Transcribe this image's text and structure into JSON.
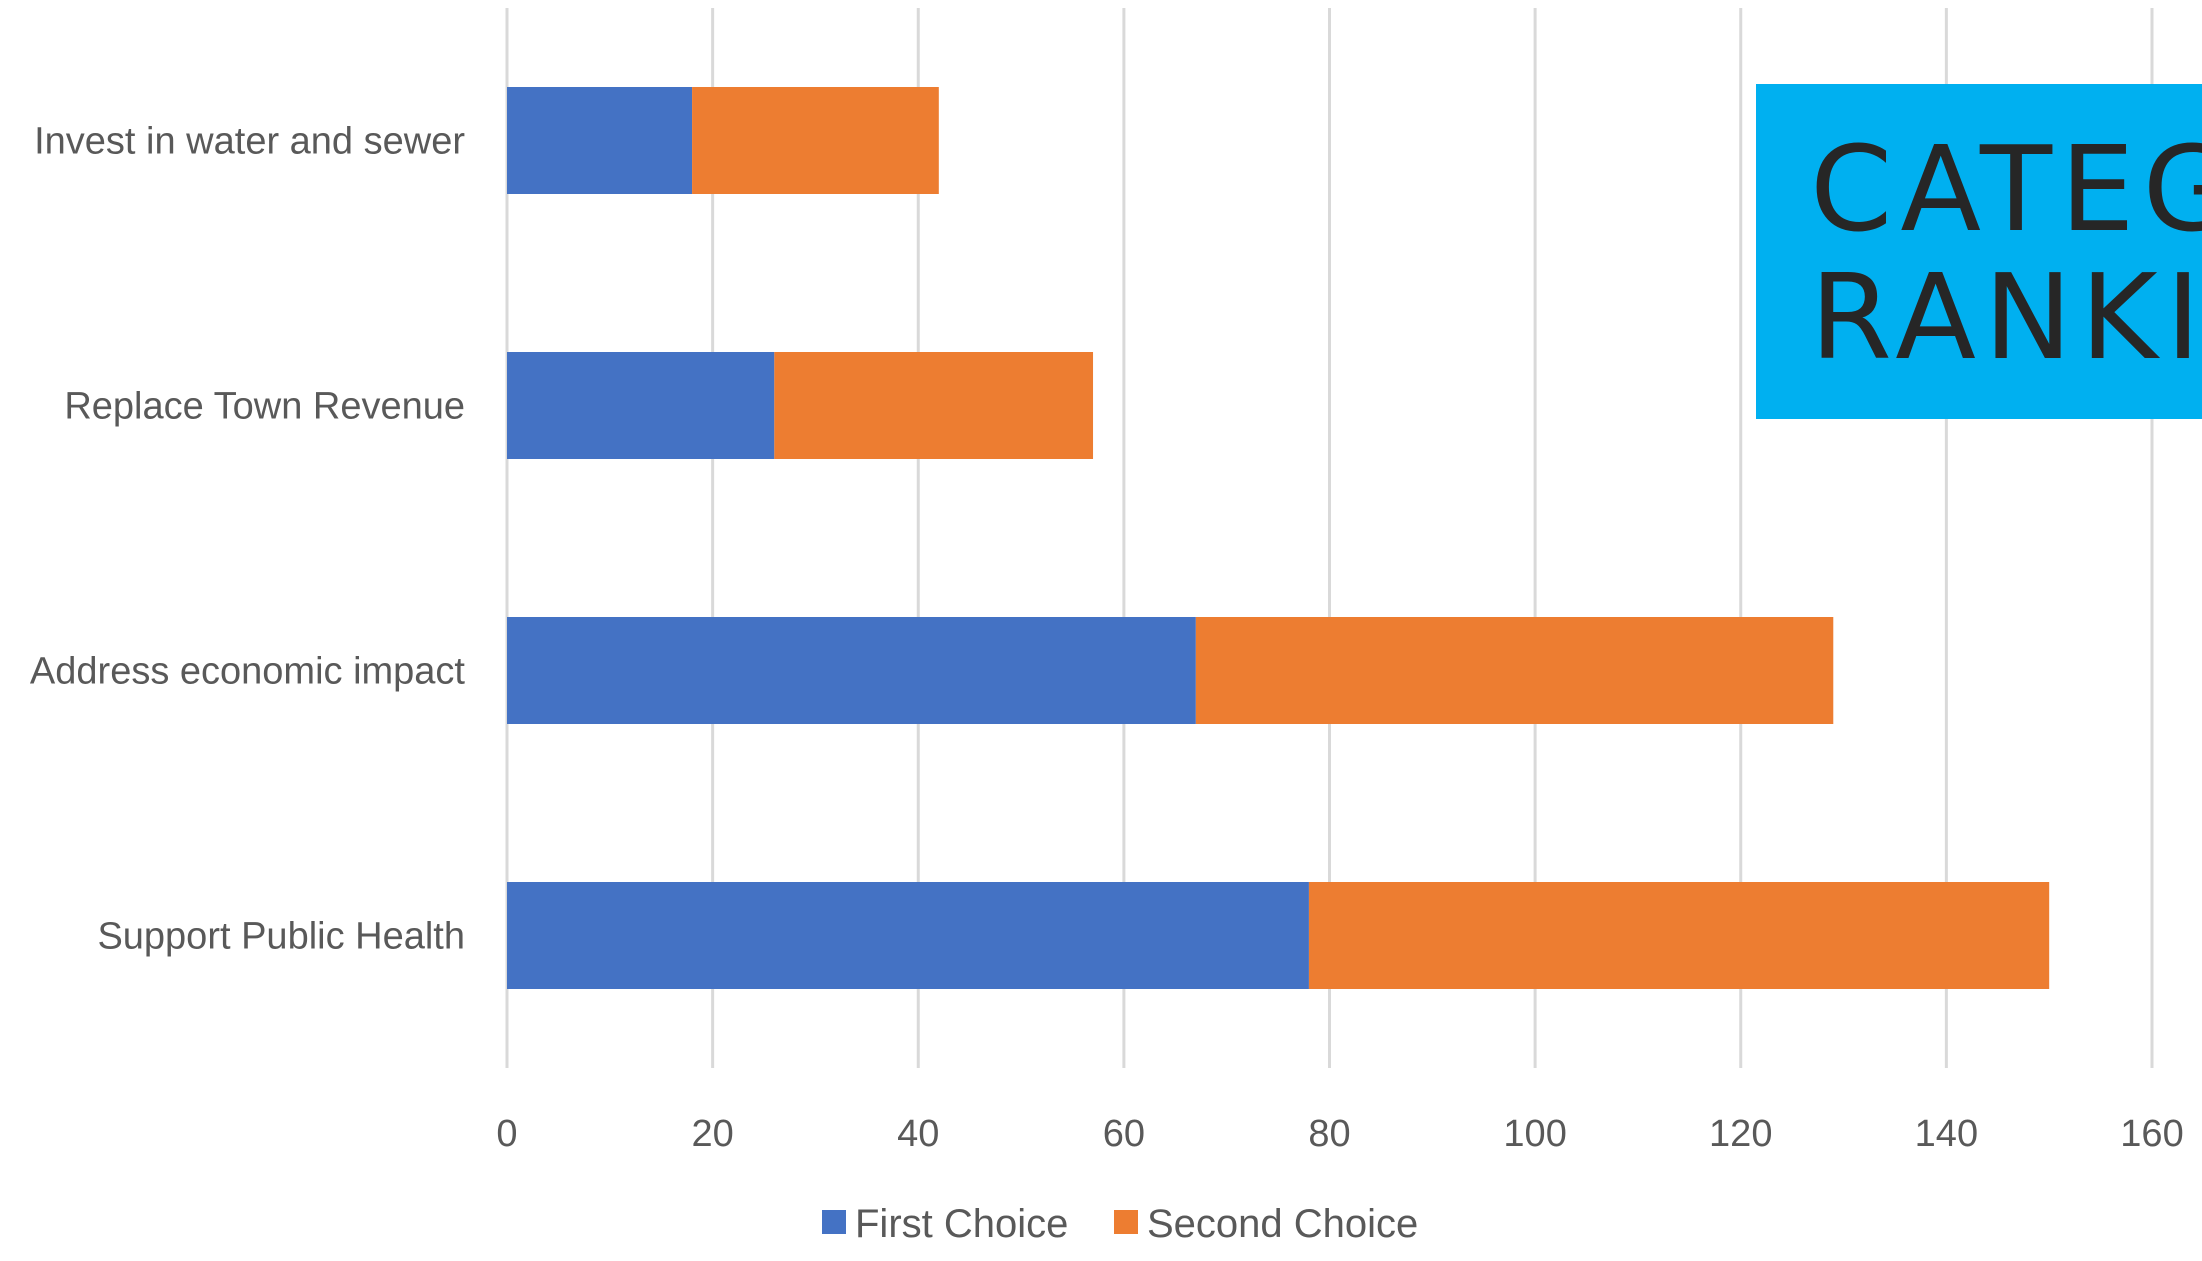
{
  "chart_data": {
    "type": "bar",
    "orientation": "horizontal",
    "stacked": true,
    "categories": [
      "Support Public Health",
      "Address economic impact",
      "Replace Town Revenue",
      "Invest in water and sewer"
    ],
    "series": [
      {
        "name": "First Choice",
        "color": "#4472C4",
        "values": [
          78,
          67,
          26,
          18
        ]
      },
      {
        "name": "Second Choice",
        "color": "#ED7D31",
        "values": [
          72,
          62,
          31,
          24
        ]
      }
    ],
    "xlim": [
      0,
      160
    ],
    "xticks": [
      0,
      20,
      40,
      60,
      80,
      100,
      120,
      140,
      160
    ],
    "grid": "vertical",
    "legend": "bottom-center"
  },
  "title_box": {
    "line1": "CATEG",
    "line2": "RANKI",
    "background": "#00B0F0"
  }
}
